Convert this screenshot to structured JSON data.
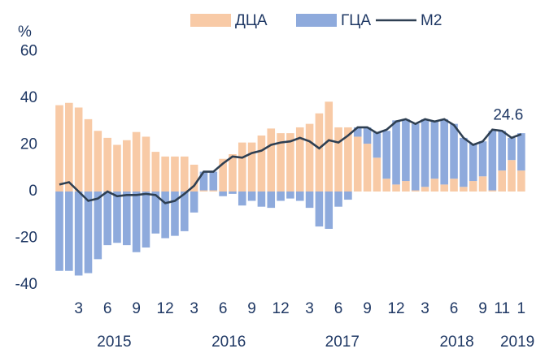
{
  "chart_data": {
    "type": "bar",
    "unit_label": "%",
    "categories": [
      null,
      null,
      "3",
      null,
      null,
      "6",
      null,
      null,
      "9",
      null,
      null,
      "12",
      null,
      null,
      "3",
      null,
      null,
      "6",
      null,
      null,
      "9",
      null,
      null,
      "12",
      null,
      null,
      "3",
      null,
      null,
      "6",
      null,
      null,
      "9",
      null,
      null,
      "12",
      null,
      null,
      "3",
      null,
      null,
      "6",
      null,
      null,
      "9",
      null,
      "11",
      null,
      "1"
    ],
    "years": [
      "2015",
      "2016",
      "2017",
      "2018",
      "2019"
    ],
    "series": [
      {
        "name": "ДЦА",
        "type": "bar",
        "color": "#f8caa6",
        "values": [
          37,
          38,
          36,
          31,
          26,
          23,
          20,
          22,
          25.5,
          23.5,
          17,
          15,
          15,
          15,
          11.5,
          0.5,
          0.5,
          14,
          16,
          21,
          21,
          24,
          27,
          25,
          25,
          27.5,
          29,
          33.5,
          38.5,
          27.5,
          27.5,
          23.5,
          20.5,
          14.5,
          5.5,
          3,
          4.5,
          0.5,
          2,
          5.5,
          3,
          5.5,
          2,
          4.5,
          6.5,
          0.5,
          9,
          13.5,
          9
        ]
      },
      {
        "name": "ГЦА",
        "type": "bar",
        "color": "#8eaadc",
        "values": [
          -34,
          -34,
          -36,
          -35,
          -29,
          -23,
          -22,
          -23,
          -26,
          -24,
          -18,
          -20,
          -19,
          -17,
          -9,
          8,
          8,
          -2,
          -1,
          -6,
          -4,
          -6.5,
          -7,
          -4,
          -3,
          -4,
          -7,
          -15,
          -16,
          -6.5,
          -3.5,
          4,
          7,
          11,
          20.5,
          27.5,
          26.5,
          28.5,
          29,
          24.5,
          28,
          23.5,
          21,
          16,
          15,
          25.5,
          17,
          9.5,
          16
        ]
      },
      {
        "name": "М2",
        "type": "line",
        "color": "#2e3f52",
        "values": [
          3,
          4,
          0,
          -4,
          -3,
          0,
          -2,
          -1.5,
          -1.5,
          -1,
          -1.5,
          -5,
          -4,
          -1,
          2.5,
          8.5,
          8.5,
          12,
          15,
          14.5,
          16.5,
          17.5,
          20,
          21,
          21.5,
          23,
          21.5,
          18.5,
          22,
          21,
          24,
          27.5,
          27.5,
          25,
          26.5,
          30,
          31,
          29,
          31,
          30,
          31,
          28.5,
          23,
          20,
          21.5,
          26.5,
          26,
          23,
          24.6
        ]
      }
    ],
    "ylim": [
      -45,
      62
    ],
    "yticks": [
      -40,
      -20,
      0,
      20,
      40,
      60
    ],
    "grid": false
  }
}
